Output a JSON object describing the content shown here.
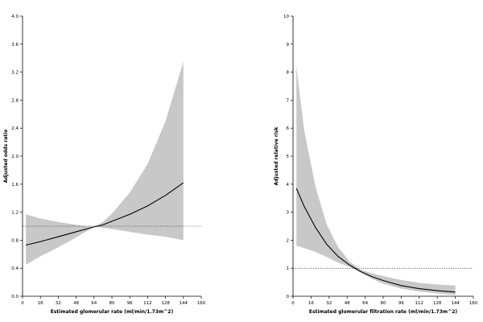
{
  "chart_data": [
    {
      "type": "line",
      "title": "",
      "xlabel": "Estimated glomerular rate (ml/min/1.73m^2)",
      "ylabel": "Adjusted odds ratio",
      "xlim": [
        0,
        160
      ],
      "ylim": [
        0.0,
        4.0
      ],
      "xticks": [
        0,
        16,
        32,
        48,
        64,
        80,
        96,
        112,
        128,
        144,
        160
      ],
      "yticks": [
        0.0,
        0.4,
        0.8,
        1.2,
        1.6,
        2.0,
        2.4,
        2.8,
        3.2,
        3.6,
        4.0
      ],
      "ytick_decimals": 1,
      "reference_line": 1.0,
      "band_color": "#c8c8c8",
      "line_color": "#000000",
      "series": [
        {
          "x": [
            3,
            16,
            32,
            48,
            64,
            72,
            80,
            96,
            112,
            128,
            144
          ],
          "y": [
            0.73,
            0.78,
            0.85,
            0.92,
            0.99,
            1.02,
            1.07,
            1.17,
            1.29,
            1.44,
            1.62
          ],
          "lower": [
            0.45,
            0.57,
            0.7,
            0.84,
            0.99,
            0.98,
            0.96,
            0.92,
            0.88,
            0.85,
            0.8
          ],
          "upper": [
            1.17,
            1.11,
            1.06,
            1.02,
            0.99,
            1.06,
            1.18,
            1.48,
            1.89,
            2.5,
            3.35
          ]
        }
      ]
    },
    {
      "type": "line",
      "title": "",
      "xlabel": "Estimated glomerular filtration rate (ml/min/1.73m^2)",
      "ylabel": "Adjusted relative risk",
      "xlim": [
        0,
        160
      ],
      "ylim": [
        0,
        10
      ],
      "xticks": [
        0,
        16,
        32,
        48,
        64,
        80,
        96,
        112,
        128,
        144,
        160
      ],
      "yticks": [
        0,
        1,
        2,
        3,
        4,
        5,
        6,
        7,
        8,
        9,
        10
      ],
      "ytick_decimals": 0,
      "reference_line": 1,
      "band_color": "#c8c8c8",
      "line_color": "#000000",
      "series": [
        {
          "x": [
            3,
            10,
            20,
            30,
            40,
            50,
            60,
            70,
            80,
            96,
            112,
            128,
            144
          ],
          "y": [
            3.85,
            3.2,
            2.45,
            1.85,
            1.42,
            1.12,
            0.88,
            0.7,
            0.56,
            0.38,
            0.27,
            0.2,
            0.15
          ],
          "lower": [
            1.8,
            1.72,
            1.58,
            1.4,
            1.2,
            1.05,
            0.85,
            0.62,
            0.45,
            0.27,
            0.17,
            0.1,
            0.05
          ],
          "upper": [
            8.2,
            5.9,
            3.9,
            2.55,
            1.75,
            1.25,
            0.95,
            0.82,
            0.72,
            0.58,
            0.48,
            0.42,
            0.38
          ]
        }
      ]
    }
  ]
}
